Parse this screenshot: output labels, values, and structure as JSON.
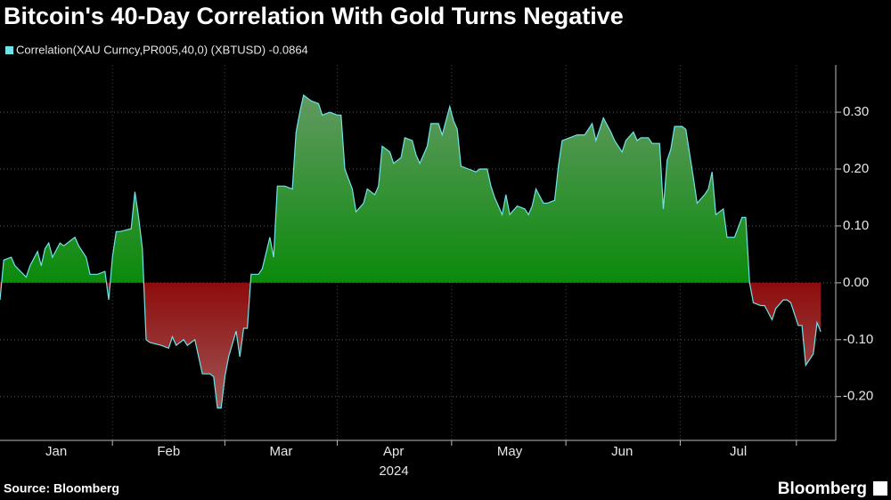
{
  "chart_data": {
    "type": "area",
    "title": "Bitcoin's 40-Day Correlation With Gold Turns Negative",
    "x_label": "2024",
    "source": "Source: Bloomberg",
    "brand": "Bloomberg",
    "x": [
      0,
      1,
      3,
      4,
      7,
      8,
      10,
      11,
      12,
      13,
      14,
      16,
      17,
      19,
      20,
      21,
      23,
      24,
      26,
      28,
      29,
      30,
      31,
      32,
      35,
      36,
      37,
      38,
      39,
      40,
      43,
      45,
      46,
      47,
      49,
      50,
      52,
      53,
      54,
      56,
      57,
      58,
      59,
      60,
      61,
      63,
      64,
      65,
      66,
      67,
      69,
      70,
      72,
      73,
      74,
      76,
      78,
      79,
      80,
      81,
      83,
      85,
      86,
      88,
      90,
      91,
      92,
      94,
      95,
      97,
      98,
      100,
      101,
      102,
      104,
      105,
      107,
      108,
      110,
      111,
      112,
      114,
      115,
      117,
      118,
      120,
      121,
      122,
      123,
      125,
      127,
      128,
      130,
      131,
      132,
      134,
      135,
      136,
      138,
      140,
      141,
      142,
      143,
      145,
      146,
      148,
      149,
      150,
      152,
      154,
      156,
      158,
      159,
      160,
      161,
      163,
      164,
      166,
      167,
      169,
      170,
      171,
      173,
      174,
      176,
      177,
      178,
      179,
      180,
      182,
      183,
      185,
      186,
      188,
      189,
      190,
      191,
      193,
      194,
      196,
      198,
      199,
      200,
      201,
      203,
      204,
      206,
      207,
      209,
      210,
      211,
      213,
      214,
      215,
      217,
      218,
      219
    ],
    "series": [
      {
        "name": "Correlation(XAU Curncy,PR005,40,0) (XBTUSD) -0.0864",
        "color": "#6fe3e8",
        "values": [
          -0.03,
          0.04,
          0.045,
          0.03,
          0.01,
          0.03,
          0.055,
          0.03,
          0.06,
          0.07,
          0.045,
          0.07,
          0.065,
          0.075,
          0.08,
          0.065,
          0.045,
          0.015,
          0.015,
          0.02,
          -0.03,
          0.045,
          0.09,
          0.09,
          0.095,
          0.16,
          0.115,
          0.06,
          -0.1,
          -0.105,
          -0.11,
          -0.115,
          -0.095,
          -0.11,
          -0.1,
          -0.11,
          -0.1,
          -0.13,
          -0.16,
          -0.16,
          -0.165,
          -0.22,
          -0.22,
          -0.165,
          -0.13,
          -0.085,
          -0.13,
          -0.08,
          -0.08,
          0.015,
          0.015,
          0.025,
          0.08,
          0.045,
          0.17,
          0.17,
          0.165,
          0.265,
          0.3,
          0.33,
          0.32,
          0.315,
          0.295,
          0.3,
          0.295,
          0.295,
          0.2,
          0.165,
          0.125,
          0.14,
          0.165,
          0.155,
          0.17,
          0.24,
          0.23,
          0.21,
          0.22,
          0.255,
          0.25,
          0.225,
          0.21,
          0.24,
          0.28,
          0.28,
          0.26,
          0.31,
          0.285,
          0.27,
          0.205,
          0.2,
          0.195,
          0.2,
          0.2,
          0.17,
          0.15,
          0.12,
          0.155,
          0.12,
          0.135,
          0.13,
          0.12,
          0.135,
          0.165,
          0.14,
          0.14,
          0.145,
          0.205,
          0.25,
          0.255,
          0.26,
          0.26,
          0.28,
          0.25,
          0.27,
          0.29,
          0.265,
          0.25,
          0.23,
          0.25,
          0.265,
          0.25,
          0.255,
          0.255,
          0.245,
          0.245,
          0.13,
          0.215,
          0.235,
          0.275,
          0.275,
          0.27,
          0.185,
          0.14,
          0.155,
          0.165,
          0.195,
          0.12,
          0.13,
          0.08,
          0.08,
          0.115,
          0.115,
          0.0,
          -0.035,
          -0.04,
          -0.04,
          -0.065,
          -0.045,
          -0.03,
          -0.03,
          -0.035,
          -0.075,
          -0.075,
          -0.145,
          -0.125,
          -0.07,
          -0.086
        ]
      }
    ],
    "xlim": [
      0,
      223
    ],
    "xticks": [
      {
        "value": 15,
        "label": "Jan"
      },
      {
        "value": 45,
        "label": "Feb"
      },
      {
        "value": 75,
        "label": "Mar"
      },
      {
        "value": 105,
        "label": "Apr"
      },
      {
        "value": 136,
        "label": "May"
      },
      {
        "value": 166,
        "label": "Jun"
      },
      {
        "value": 197,
        "label": "Jul"
      }
    ],
    "ylim": [
      -0.277,
      0.383
    ],
    "yticks": [
      {
        "value": 0.3,
        "label": "0.30"
      },
      {
        "value": 0.2,
        "label": "0.20"
      },
      {
        "value": 0.1,
        "label": "0.10"
      },
      {
        "value": 0,
        "label": "0.00"
      },
      {
        "value": -0.1,
        "label": "-0.10"
      },
      {
        "value": -0.2,
        "label": "-0.20"
      }
    ],
    "grid": true,
    "positive_color": "#0b8a0b",
    "negative_color": "#8e0c0c"
  }
}
